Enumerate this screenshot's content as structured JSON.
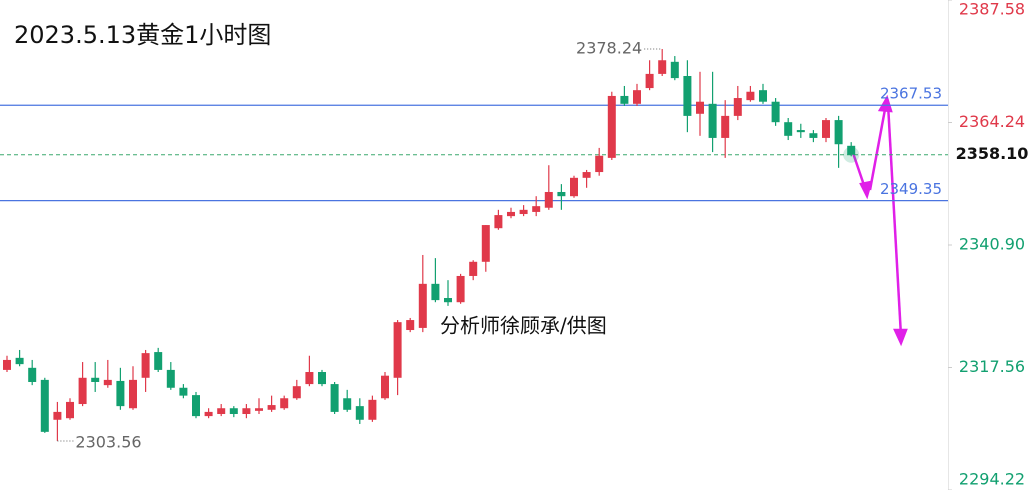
{
  "chart_data": {
    "type": "candlestick",
    "title": "2023.5.13黄金1小时图",
    "watermark": "分析师徐顾承/供图",
    "categories": [
      null,
      null,
      null,
      null,
      null,
      null,
      null,
      null,
      null,
      null,
      null,
      null,
      null,
      null,
      null,
      null,
      null,
      null,
      null,
      null,
      null,
      null,
      null,
      null,
      null,
      null,
      null,
      null,
      null,
      null,
      null,
      null,
      null,
      null,
      null,
      null,
      null,
      null,
      null,
      null,
      null,
      null,
      null,
      null,
      null,
      null,
      null,
      null,
      null,
      null,
      null,
      null,
      null,
      null,
      null,
      null,
      null,
      null,
      null,
      null,
      null,
      null,
      null,
      null,
      null,
      null,
      null,
      null
    ],
    "open": [
      2317.1,
      2319.4,
      2317.5,
      2315.2,
      2307.6,
      2307.9,
      2310.6,
      2315.6,
      2314.2,
      2315.0,
      2309.8,
      2315.6,
      2320.5,
      2317.1,
      2313.7,
      2312.3,
      2308.3,
      2308.7,
      2309.8,
      2308.7,
      2309.3,
      2309.5,
      2309.8,
      2311.7,
      2314.4,
      2316.7,
      2314.4,
      2311.7,
      2310.2,
      2307.6,
      2311.7,
      2315.6,
      2324.7,
      2325.1,
      2333.5,
      2330.8,
      2330.0,
      2335.0,
      2337.7,
      2344.1,
      2346.4,
      2346.8,
      2347.2,
      2348.0,
      2351.0,
      2350.2,
      2353.7,
      2354.8,
      2357.5,
      2369.3,
      2367.8,
      2370.8,
      2373.5,
      2375.8,
      2373.1,
      2365.9,
      2367.8,
      2361.3,
      2365.5,
      2368.5,
      2370.4,
      2368.2,
      2364.3,
      2362.8,
      2362.2,
      2361.3,
      2364.7,
      2359.8
    ],
    "high": [
      2319.8,
      2320.9,
      2319.0,
      2315.6,
      2311.0,
      2311.7,
      2318.6,
      2318.6,
      2319.0,
      2317.5,
      2317.8,
      2320.9,
      2321.3,
      2318.6,
      2314.4,
      2312.9,
      2309.8,
      2310.6,
      2310.2,
      2310.6,
      2311.7,
      2312.2,
      2312.2,
      2315.2,
      2319.8,
      2317.1,
      2314.8,
      2313.3,
      2311.7,
      2312.2,
      2316.7,
      2326.6,
      2327.0,
      2339.0,
      2338.4,
      2334.2,
      2335.4,
      2338.0,
      2344.7,
      2347.6,
      2348.0,
      2348.5,
      2350.2,
      2356.1,
      2352.5,
      2354.1,
      2355.2,
      2359.4,
      2370.1,
      2371.2,
      2371.6,
      2376.1,
      2378.24,
      2376.9,
      2376.1,
      2373.9,
      2373.9,
      2368.5,
      2371.2,
      2371.2,
      2371.6,
      2368.9,
      2365.1,
      2364.0,
      2362.8,
      2365.1,
      2365.5,
      2360.5
    ],
    "low": [
      2316.7,
      2317.8,
      2314.2,
      2305.1,
      2303.56,
      2307.6,
      2310.2,
      2312.9,
      2313.7,
      2309.5,
      2309.5,
      2312.9,
      2316.7,
      2313.3,
      2311.7,
      2307.9,
      2307.9,
      2308.3,
      2308.1,
      2307.9,
      2308.7,
      2309.1,
      2309.5,
      2311.4,
      2314.0,
      2314.0,
      2308.7,
      2309.1,
      2306.8,
      2307.2,
      2311.4,
      2312.3,
      2324.3,
      2324.3,
      2330.0,
      2329.3,
      2329.7,
      2334.2,
      2335.8,
      2343.8,
      2346.0,
      2346.4,
      2346.4,
      2347.6,
      2347.6,
      2349.9,
      2351.8,
      2354.1,
      2357.1,
      2367.4,
      2367.4,
      2370.4,
      2373.1,
      2372.3,
      2362.4,
      2361.7,
      2358.6,
      2357.5,
      2364.7,
      2368.2,
      2367.8,
      2363.6,
      2360.9,
      2361.3,
      2360.5,
      2360.5,
      2355.6,
      2357.8
    ],
    "close": [
      2319.0,
      2318.2,
      2314.8,
      2305.3,
      2309.1,
      2311.0,
      2315.6,
      2314.8,
      2315.2,
      2310.2,
      2315.2,
      2320.3,
      2317.1,
      2313.7,
      2312.2,
      2308.3,
      2309.1,
      2309.8,
      2308.7,
      2309.8,
      2309.8,
      2310.4,
      2311.7,
      2314.0,
      2316.7,
      2314.4,
      2309.1,
      2309.5,
      2307.6,
      2311.4,
      2316.0,
      2326.2,
      2326.6,
      2333.5,
      2330.4,
      2330.0,
      2335.0,
      2337.7,
      2344.7,
      2346.6,
      2347.2,
      2347.6,
      2348.3,
      2351.0,
      2350.2,
      2353.7,
      2354.8,
      2357.9,
      2369.3,
      2367.8,
      2370.4,
      2373.5,
      2376.1,
      2372.7,
      2365.5,
      2368.2,
      2361.3,
      2365.5,
      2368.9,
      2370.1,
      2368.2,
      2364.3,
      2361.7,
      2362.4,
      2361.3,
      2364.7,
      2360.1,
      2358.1
    ],
    "up_color": "#e0394a",
    "down_color": "#12a070",
    "hlines": [
      {
        "value": 2367.53,
        "color": "#4a74e0"
      },
      {
        "value": 2349.35,
        "color": "#4a74e0"
      }
    ],
    "last_price": {
      "value": 2358.1,
      "label": "2358.10"
    },
    "ylim": [
      2294.22,
      2387.58
    ],
    "yticks": [
      2294.22,
      2317.56,
      {
        "value": 2340.9,
        "label": "2340.90"
      },
      2364.24,
      2387.58
    ]
  }
}
